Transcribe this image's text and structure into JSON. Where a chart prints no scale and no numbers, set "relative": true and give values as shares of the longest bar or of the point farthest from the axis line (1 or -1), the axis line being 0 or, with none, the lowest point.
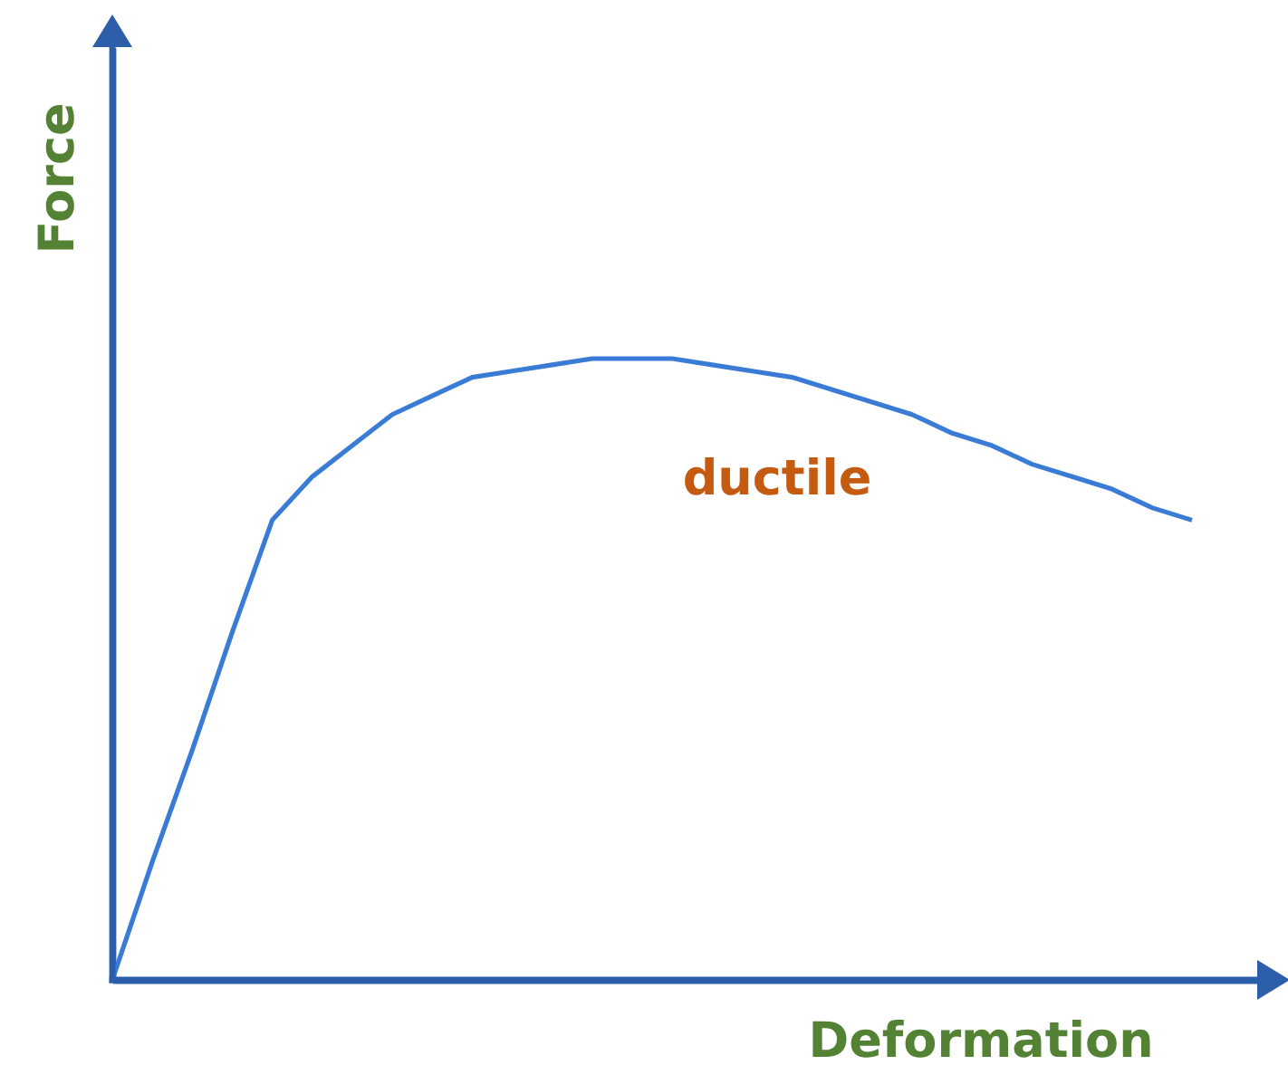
{
  "chart_data": {
    "type": "line",
    "xlabel": "Deformation",
    "ylabel": "Force",
    "relative": true,
    "categories": [
      null,
      null,
      null,
      null,
      null,
      null,
      null,
      null,
      null,
      null,
      null,
      null,
      null,
      null,
      null,
      null,
      null,
      null,
      null,
      null,
      null,
      null,
      null,
      null,
      null,
      null,
      null,
      null
    ],
    "series": [
      {
        "name": "ductile",
        "color": "#3a7bd5",
        "values": [
          0,
          0.19,
          0.37,
          0.56,
          0.74,
          0.81,
          0.86,
          0.91,
          0.94,
          0.97,
          0.98,
          0.99,
          1.0,
          1.0,
          1.0,
          0.99,
          0.98,
          0.97,
          0.95,
          0.93,
          0.91,
          0.88,
          0.86,
          0.83,
          0.81,
          0.79,
          0.76,
          0.74
        ]
      }
    ]
  }
}
